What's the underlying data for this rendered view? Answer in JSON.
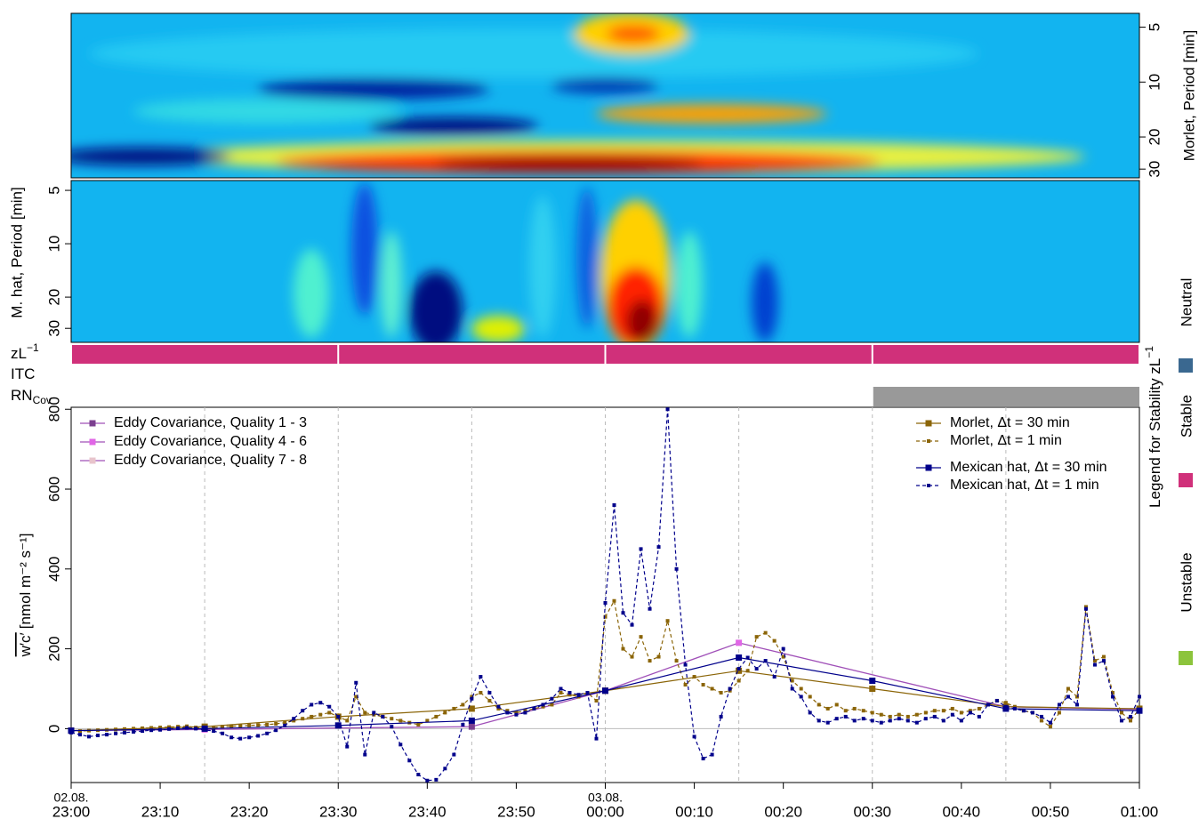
{
  "chart_data": [
    {
      "type": "heatmap",
      "ylabel": "Morlet, Period [min]",
      "axis_side": "right",
      "log": true,
      "invert_y": true,
      "ylim": [
        4.2,
        33.5
      ],
      "yticks": [
        5,
        10,
        20,
        30
      ]
    },
    {
      "type": "heatmap",
      "ylabel": "M. hat, Period [min]",
      "axis_side": "left",
      "log": true,
      "invert_y": true,
      "ylim": [
        4.4,
        36
      ],
      "yticks": [
        5,
        10,
        20,
        30
      ]
    },
    {
      "type": "line",
      "ylabel": "w′c′",
      "ylabel_unit": "[nmol  m⁻² s⁻¹]",
      "xlim": [
        "23:00",
        "01:00"
      ],
      "xticks": [
        "23:00",
        "23:10",
        "23:20",
        "23:30",
        "23:40",
        "23:50",
        "00:00",
        "00:10",
        "00:20",
        "00:30",
        "00:40",
        "00:50",
        "01:00"
      ],
      "date_labels": [
        {
          "at": "23:00",
          "label": "02.08."
        },
        {
          "at": "00:00",
          "label": "03.08."
        }
      ],
      "ylim": [
        -135,
        805
      ],
      "yticks": [
        0,
        200,
        400,
        600,
        800
      ],
      "xgrid": true,
      "ec_line_color": "#a050b8",
      "x": [
        "23:00",
        "23:01",
        "23:02",
        "23:03",
        "23:04",
        "23:05",
        "23:06",
        "23:07",
        "23:08",
        "23:09",
        "23:10",
        "23:11",
        "23:12",
        "23:13",
        "23:14",
        "23:15",
        "23:16",
        "23:17",
        "23:18",
        "23:19",
        "23:20",
        "23:21",
        "23:22",
        "23:23",
        "23:24",
        "23:25",
        "23:26",
        "23:27",
        "23:28",
        "23:29",
        "23:30",
        "23:31",
        "23:32",
        "23:33",
        "23:34",
        "23:35",
        "23:36",
        "23:37",
        "23:38",
        "23:39",
        "23:40",
        "23:41",
        "23:42",
        "23:43",
        "23:44",
        "23:45",
        "23:46",
        "23:47",
        "23:48",
        "23:49",
        "23:50",
        "23:51",
        "23:52",
        "23:53",
        "23:54",
        "23:55",
        "23:56",
        "23:57",
        "23:58",
        "23:59",
        "00:00",
        "00:01",
        "00:02",
        "00:03",
        "00:04",
        "00:05",
        "00:06",
        "00:07",
        "00:08",
        "00:09",
        "00:10",
        "00:11",
        "00:12",
        "00:13",
        "00:14",
        "00:15",
        "00:16",
        "00:17",
        "00:18",
        "00:19",
        "00:20",
        "00:21",
        "00:22",
        "00:23",
        "00:24",
        "00:25",
        "00:26",
        "00:27",
        "00:28",
        "00:29",
        "00:30",
        "00:31",
        "00:32",
        "00:33",
        "00:34",
        "00:35",
        "00:36",
        "00:37",
        "00:38",
        "00:39",
        "00:40",
        "00:41",
        "00:42",
        "00:43",
        "00:44",
        "00:45",
        "00:46",
        "00:47",
        "00:48",
        "00:49",
        "00:50",
        "00:51",
        "00:52",
        "00:53",
        "00:54",
        "00:55",
        "00:56",
        "00:57",
        "00:58",
        "00:59",
        "01:00"
      ],
      "series": [
        {
          "name": "Eddy Covariance, Quality 1 - 3",
          "color": "#7b3f8f",
          "group": "ec",
          "legend": "left",
          "x": [
            "23:00",
            "23:45",
            "00:00",
            "00:45",
            "01:00"
          ],
          "values": [
            -5,
            5,
            95,
            55,
            48
          ]
        },
        {
          "name": "Eddy Covariance, Quality 4 - 6",
          "color": "#e066e6",
          "group": "ec",
          "legend": "left",
          "x": [
            "23:15",
            "00:15"
          ],
          "values": [
            -2,
            215
          ]
        },
        {
          "name": "Eddy Covariance, Quality 7 - 8",
          "color": "#e8c4cc",
          "group": "ec",
          "legend": "left",
          "x": [],
          "values": []
        },
        {
          "name": "Morlet, Δt = 30 min",
          "color": "#8b6508",
          "style": "solid",
          "legend": "right",
          "x": [
            "23:00",
            "23:15",
            "23:30",
            "23:45",
            "00:00",
            "00:15",
            "00:30",
            "00:45",
            "01:00"
          ],
          "values": [
            -5,
            5,
            30,
            50,
            95,
            145,
            100,
            55,
            50
          ]
        },
        {
          "name": "Morlet, Δt = 1 min",
          "color": "#8b6508",
          "style": "dashed",
          "legend": "right",
          "values": [
            -5,
            -6,
            -5,
            -4,
            -3,
            -2,
            -1,
            0,
            1,
            2,
            3,
            4,
            5,
            6,
            3,
            0,
            2,
            5,
            6,
            7,
            8,
            9,
            10,
            12,
            15,
            20,
            25,
            30,
            35,
            40,
            30,
            20,
            80,
            40,
            35,
            30,
            25,
            20,
            15,
            10,
            20,
            30,
            40,
            50,
            60,
            80,
            90,
            70,
            50,
            45,
            40,
            45,
            50,
            55,
            60,
            90,
            85,
            80,
            90,
            70,
            280,
            320,
            200,
            180,
            230,
            170,
            180,
            270,
            170,
            110,
            130,
            110,
            100,
            90,
            95,
            120,
            145,
            230,
            240,
            220,
            180,
            120,
            100,
            80,
            60,
            50,
            60,
            45,
            50,
            45,
            40,
            35,
            30,
            35,
            30,
            35,
            40,
            45,
            45,
            50,
            40,
            45,
            50,
            60,
            70,
            65,
            55,
            45,
            40,
            20,
            5,
            40,
            100,
            80,
            305,
            170,
            180,
            90,
            40,
            20,
            50
          ]
        },
        {
          "name": "Mexican hat, Δt = 30 min",
          "color": "#00008b",
          "style": "solid",
          "legend": "right",
          "x": [
            "23:00",
            "23:15",
            "23:30",
            "23:45",
            "00:00",
            "00:15",
            "00:30",
            "00:45",
            "01:00"
          ],
          "values": [
            -5,
            0,
            8,
            20,
            95,
            178,
            120,
            50,
            45
          ]
        },
        {
          "name": "Mexican hat, Δt = 1 min",
          "color": "#00008b",
          "style": "dashed",
          "legend": "right",
          "values": [
            -10,
            -15,
            -20,
            -17,
            -15,
            -12,
            -10,
            -8,
            -6,
            -4,
            -3,
            -1,
            1,
            2,
            0,
            -3,
            -6,
            -12,
            -22,
            -25,
            -22,
            -18,
            -12,
            -4,
            8,
            25,
            45,
            60,
            65,
            55,
            30,
            -45,
            115,
            -65,
            40,
            30,
            5,
            -40,
            -80,
            -115,
            -130,
            -128,
            -100,
            -65,
            10,
            75,
            130,
            90,
            55,
            40,
            35,
            40,
            50,
            60,
            75,
            100,
            90,
            85,
            90,
            -25,
            315,
            560,
            290,
            260,
            450,
            300,
            455,
            800,
            400,
            160,
            -20,
            -75,
            -65,
            30,
            100,
            150,
            178,
            150,
            170,
            130,
            200,
            100,
            80,
            40,
            20,
            15,
            25,
            30,
            20,
            25,
            20,
            15,
            20,
            25,
            20,
            15,
            25,
            30,
            20,
            35,
            20,
            40,
            30,
            60,
            70,
            55,
            50,
            45,
            40,
            30,
            15,
            60,
            80,
            60,
            300,
            160,
            170,
            80,
            20,
            30,
            80
          ]
        }
      ]
    }
  ],
  "stability_strip": {
    "rows": [
      {
        "text": "zL",
        "sup": "−1"
      },
      {
        "text": "ITC"
      },
      {
        "text": "RN",
        "sub": "Cov"
      }
    ],
    "zL_segments": [
      {
        "start": "23:00",
        "end": "23:30",
        "class": "Stable"
      },
      {
        "start": "23:30",
        "end": "00:00",
        "class": "Stable"
      },
      {
        "start": "00:00",
        "end": "00:30",
        "class": "Stable"
      },
      {
        "start": "00:30",
        "end": "01:00",
        "class": "Stable"
      }
    ],
    "rn_segments": [
      {
        "start": "00:30",
        "end": "01:00"
      }
    ],
    "rn_color": "#999999",
    "legend_title": "Legend for Stability zL",
    "legend_title_sup": "−1",
    "legend": [
      {
        "name": "Neutral",
        "color": "#3a6890"
      },
      {
        "name": "Stable",
        "color": "#d0307a"
      },
      {
        "name": "Unstable",
        "color": "#8cc43c"
      }
    ]
  }
}
